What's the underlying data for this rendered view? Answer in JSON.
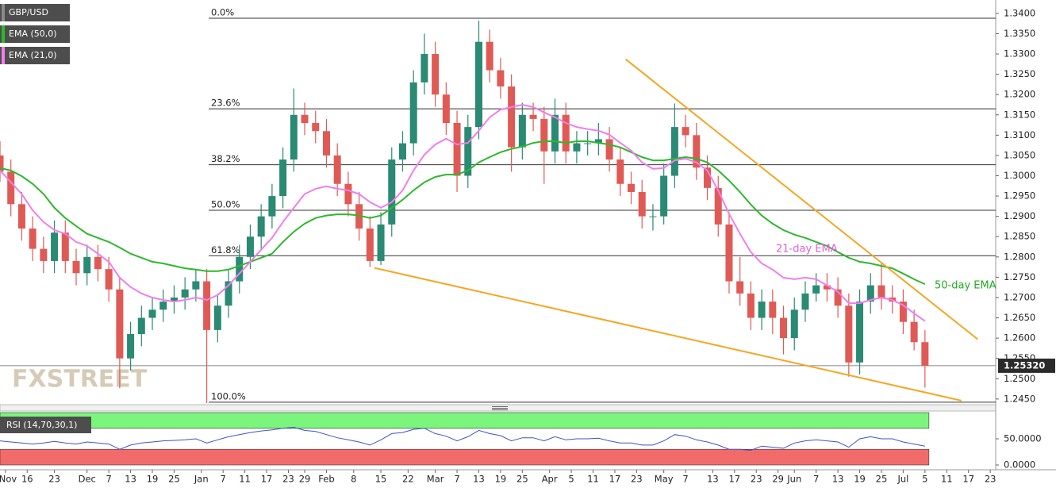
{
  "chart_data": {
    "type": "candlestick",
    "xlim": [
      -5,
      178
    ],
    "ylim": [
      1.2436,
      1.3433
    ],
    "x": [
      -5,
      -3,
      -1,
      1,
      3,
      5,
      7,
      9,
      11,
      13,
      15,
      17,
      19,
      21,
      23,
      25,
      27,
      29,
      31,
      33,
      35,
      37,
      39,
      41,
      43,
      45,
      47,
      49,
      51,
      53,
      55,
      57,
      59,
      61,
      63,
      65,
      67,
      69,
      71,
      73,
      75,
      77,
      79,
      81,
      83,
      85,
      87,
      89,
      91,
      93,
      95,
      97,
      99,
      101,
      103,
      105,
      107,
      109,
      111,
      113,
      115,
      117,
      119,
      121,
      123,
      125,
      127,
      129,
      131,
      133,
      135,
      137,
      139,
      141,
      143,
      145,
      147,
      149,
      151,
      153,
      155,
      157,
      159,
      161,
      163,
      165
    ],
    "series": [
      {
        "name": "GBP/USD",
        "up_color": "#2a8a73",
        "down_color": "#e05a55",
        "stripe_color": "#8a8a8a",
        "open": [
          1.305,
          1.301,
          1.293,
          1.287,
          1.282,
          1.279,
          1.286,
          1.279,
          1.276,
          1.28,
          1.277,
          1.272,
          1.255,
          1.261,
          1.265,
          1.267,
          1.269,
          1.27,
          1.272,
          1.274,
          1.262,
          1.268,
          1.274,
          1.28,
          1.285,
          1.29,
          1.295,
          1.304,
          1.315,
          1.313,
          1.311,
          1.305,
          1.298,
          1.293,
          1.287,
          1.279,
          1.288,
          1.304,
          1.308,
          1.323,
          1.33,
          1.32,
          1.313,
          1.3,
          1.312,
          1.333,
          1.326,
          1.322,
          1.307,
          1.315,
          1.314,
          1.306,
          1.315,
          1.306,
          1.308,
          1.308,
          1.309,
          1.304,
          1.298,
          1.296,
          1.29,
          1.29,
          1.3,
          1.312,
          1.31,
          1.302,
          1.297,
          1.288,
          1.274,
          1.271,
          1.265,
          1.269,
          1.265,
          1.26,
          1.267,
          1.271,
          1.273,
          1.272,
          1.268,
          1.254,
          1.269,
          1.273,
          1.27,
          1.269,
          1.264,
          1.259
        ],
        "high": [
          1.3085,
          1.304,
          1.296,
          1.29,
          1.285,
          1.289,
          1.289,
          1.282,
          1.283,
          1.283,
          1.28,
          1.275,
          1.264,
          1.268,
          1.27,
          1.272,
          1.273,
          1.275,
          1.277,
          1.277,
          1.271,
          1.277,
          1.283,
          1.288,
          1.293,
          1.298,
          1.307,
          1.3215,
          1.318,
          1.316,
          1.314,
          1.308,
          1.301,
          1.296,
          1.29,
          1.291,
          1.307,
          1.311,
          1.326,
          1.335,
          1.333,
          1.323,
          1.316,
          1.315,
          1.3382,
          1.336,
          1.329,
          1.325,
          1.318,
          1.318,
          1.317,
          1.319,
          1.318,
          1.311,
          1.311,
          1.313,
          1.312,
          1.307,
          1.301,
          1.299,
          1.293,
          1.303,
          1.3178,
          1.315,
          1.313,
          1.305,
          1.3,
          1.291,
          1.28,
          1.274,
          1.272,
          1.272,
          1.268,
          1.27,
          1.274,
          1.276,
          1.276,
          1.275,
          1.271,
          1.272,
          1.276,
          1.2785,
          1.273,
          1.272,
          1.267,
          1.262
        ],
        "low": [
          1.2985,
          1.29,
          1.284,
          1.279,
          1.276,
          1.276,
          1.276,
          1.273,
          1.273,
          1.274,
          1.269,
          1.2477,
          1.252,
          1.258,
          1.262,
          1.264,
          1.266,
          1.267,
          1.269,
          1.244,
          1.259,
          1.265,
          1.271,
          1.277,
          1.282,
          1.287,
          1.292,
          1.301,
          1.31,
          1.308,
          1.302,
          1.295,
          1.29,
          1.284,
          1.2775,
          1.278,
          1.285,
          1.301,
          1.305,
          1.32,
          1.317,
          1.31,
          1.296,
          1.297,
          1.309,
          1.323,
          1.319,
          1.301,
          1.304,
          1.311,
          1.298,
          1.303,
          1.303,
          1.303,
          1.305,
          1.305,
          1.301,
          1.295,
          1.293,
          1.287,
          1.2865,
          1.288,
          1.297,
          1.307,
          1.299,
          1.294,
          1.285,
          1.271,
          1.268,
          1.262,
          1.262,
          1.261,
          1.256,
          1.257,
          1.264,
          1.269,
          1.269,
          1.265,
          1.2505,
          1.251,
          1.266,
          1.267,
          1.266,
          1.261,
          1.257,
          1.2478
        ],
        "close": [
          1.301,
          1.293,
          1.287,
          1.282,
          1.279,
          1.286,
          1.279,
          1.276,
          1.28,
          1.277,
          1.272,
          1.255,
          1.261,
          1.265,
          1.267,
          1.269,
          1.27,
          1.272,
          1.274,
          1.262,
          1.268,
          1.274,
          1.28,
          1.285,
          1.29,
          1.295,
          1.304,
          1.315,
          1.313,
          1.311,
          1.305,
          1.298,
          1.293,
          1.287,
          1.279,
          1.288,
          1.304,
          1.308,
          1.323,
          1.33,
          1.32,
          1.313,
          1.3,
          1.312,
          1.333,
          1.326,
          1.322,
          1.307,
          1.315,
          1.314,
          1.306,
          1.315,
          1.306,
          1.308,
          1.308,
          1.309,
          1.304,
          1.298,
          1.296,
          1.29,
          1.29,
          1.3,
          1.312,
          1.31,
          1.302,
          1.297,
          1.288,
          1.274,
          1.271,
          1.265,
          1.269,
          1.265,
          1.26,
          1.267,
          1.271,
          1.273,
          1.272,
          1.268,
          1.254,
          1.269,
          1.273,
          1.27,
          1.269,
          1.264,
          1.259,
          1.2532
        ]
      },
      {
        "name": "EMA (50,0)",
        "color": "#2db82d",
        "values": [
          1.3019,
          1.3013,
          1.2999,
          1.298,
          1.2955,
          1.2921,
          1.2896,
          1.2876,
          1.2857,
          1.2847,
          1.2837,
          1.2823,
          1.2808,
          1.2798,
          1.2788,
          1.2784,
          1.2778,
          1.2772,
          1.2769,
          1.2765,
          1.2765,
          1.2769,
          1.2778,
          1.2788,
          1.2798,
          1.2808,
          1.2837,
          1.2862,
          1.2882,
          1.2896,
          1.2902,
          1.2905,
          1.2905,
          1.2902,
          1.2896,
          1.2902,
          1.2921,
          1.2941,
          1.2964,
          1.2984,
          1.2997,
          1.3003,
          1.3003,
          1.3013,
          1.3033,
          1.3046,
          1.3058,
          1.3066,
          1.3072,
          1.3081,
          1.3085,
          1.3085,
          1.3081,
          1.3085,
          1.3085,
          1.3081,
          1.3077,
          1.307,
          1.3058,
          1.3046,
          1.3038,
          1.3038,
          1.3042,
          1.3046,
          1.3042,
          1.3033,
          1.3013,
          1.2988,
          1.296,
          1.2929,
          1.2902,
          1.2882,
          1.2866,
          1.2855,
          1.2847,
          1.2837,
          1.2827,
          1.2812,
          1.2798,
          1.2788,
          1.2784,
          1.2778,
          1.2772,
          1.2759,
          1.2745,
          1.2733
        ]
      },
      {
        "name": "EMA (21,0)",
        "color": "#f27ded",
        "values": [
          1.3013,
          1.2984,
          1.2955,
          1.2915,
          1.2886,
          1.2866,
          1.2857,
          1.2837,
          1.2827,
          1.2808,
          1.2788,
          1.2749,
          1.2726,
          1.271,
          1.27,
          1.2694,
          1.269,
          1.2694,
          1.27,
          1.2694,
          1.2706,
          1.273,
          1.2759,
          1.2788,
          1.2818,
          1.2847,
          1.2886,
          1.2921,
          1.2955,
          1.2968,
          1.2974,
          1.2968,
          1.2964,
          1.2955,
          1.2935,
          1.2921,
          1.2935,
          1.2964,
          1.3013,
          1.3052,
          1.3077,
          1.3091,
          1.3077,
          1.3081,
          1.3111,
          1.3144,
          1.3163,
          1.3169,
          1.3175,
          1.3169,
          1.3156,
          1.3144,
          1.313,
          1.312,
          1.3115,
          1.3111,
          1.3101,
          1.3081,
          1.3062,
          1.3033,
          1.3017,
          1.3019,
          1.3038,
          1.3042,
          1.3033,
          1.3013,
          1.2964,
          1.2906,
          1.2857,
          1.2812,
          1.2784,
          1.2769,
          1.2749,
          1.2745,
          1.2749,
          1.2745,
          1.273,
          1.2714,
          1.2686,
          1.2686,
          1.2694,
          1.27,
          1.2694,
          1.2681,
          1.2661,
          1.2642
        ]
      }
    ],
    "yticks": [
      {
        "value": 1.34,
        "label": "1.3400"
      },
      {
        "value": 1.335,
        "label": "1.3350"
      },
      {
        "value": 1.33,
        "label": "1.3300"
      },
      {
        "value": 1.325,
        "label": "1.3250"
      },
      {
        "value": 1.32,
        "label": "1.3200"
      },
      {
        "value": 1.315,
        "label": "1.3150"
      },
      {
        "value": 1.31,
        "label": "1.3100"
      },
      {
        "value": 1.305,
        "label": "1.3050"
      },
      {
        "value": 1.3,
        "label": "1.3000"
      },
      {
        "value": 1.295,
        "label": "1.2950"
      },
      {
        "value": 1.29,
        "label": "1.2900"
      },
      {
        "value": 1.285,
        "label": "1.2850"
      },
      {
        "value": 1.28,
        "label": "1.2800"
      },
      {
        "value": 1.275,
        "label": "1.2750"
      },
      {
        "value": 1.27,
        "label": "1.2700"
      },
      {
        "value": 1.265,
        "label": "1.2650"
      },
      {
        "value": 1.26,
        "label": "1.2600"
      },
      {
        "value": 1.255,
        "label": "1.2550"
      },
      {
        "value": 1.25,
        "label": "1.2500"
      },
      {
        "value": 1.245,
        "label": "1.2450"
      }
    ],
    "xticks": [
      {
        "value": -4,
        "label": "Nov"
      },
      {
        "value": 0,
        "label": "16"
      },
      {
        "value": 5,
        "label": "23"
      },
      {
        "value": 11,
        "label": "Dec"
      },
      {
        "value": 15,
        "label": "7"
      },
      {
        "value": 19,
        "label": "13"
      },
      {
        "value": 23,
        "label": "19"
      },
      {
        "value": 27,
        "label": "25"
      },
      {
        "value": 32,
        "label": "Jan"
      },
      {
        "value": 36,
        "label": "7"
      },
      {
        "value": 40,
        "label": "11"
      },
      {
        "value": 44,
        "label": "17"
      },
      {
        "value": 48,
        "label": "23"
      },
      {
        "value": 51,
        "label": "29"
      },
      {
        "value": 55,
        "label": "Feb"
      },
      {
        "value": 60,
        "label": "8"
      },
      {
        "value": 65,
        "label": "15"
      },
      {
        "value": 70,
        "label": "22"
      },
      {
        "value": 75,
        "label": "Mar"
      },
      {
        "value": 79,
        "label": "7"
      },
      {
        "value": 83,
        "label": "13"
      },
      {
        "value": 87,
        "label": "19"
      },
      {
        "value": 91,
        "label": "25"
      },
      {
        "value": 96,
        "label": "Apr"
      },
      {
        "value": 100,
        "label": "5"
      },
      {
        "value": 104,
        "label": "11"
      },
      {
        "value": 108,
        "label": "17"
      },
      {
        "value": 112,
        "label": "23"
      },
      {
        "value": 117,
        "label": "May"
      },
      {
        "value": 121,
        "label": "7"
      },
      {
        "value": 126,
        "label": "13"
      },
      {
        "value": 130,
        "label": "17"
      },
      {
        "value": 134,
        "label": "23"
      },
      {
        "value": 138,
        "label": "29"
      },
      {
        "value": 141,
        "label": "Jun"
      },
      {
        "value": 145,
        "label": "7"
      },
      {
        "value": 149,
        "label": "13"
      },
      {
        "value": 153,
        "label": "19"
      },
      {
        "value": 157,
        "label": "25"
      },
      {
        "value": 161,
        "label": "Jul"
      },
      {
        "value": 165,
        "label": "5"
      },
      {
        "value": 169,
        "label": "11"
      },
      {
        "value": 173,
        "label": "17"
      },
      {
        "value": 177,
        "label": "23"
      }
    ],
    "fib_levels": [
      {
        "value": 1.3388,
        "label": "0.0%"
      },
      {
        "value": 1.3165,
        "label": "23.6%"
      },
      {
        "value": 1.3027,
        "label": "38.2%"
      },
      {
        "value": 1.2915,
        "label": "50.0%"
      },
      {
        "value": 1.2803,
        "label": "61.8%"
      },
      {
        "value": 1.2442,
        "label": "100.0%"
      }
    ],
    "trendlines": [
      {
        "color": "#f5a623",
        "x": [
          110,
          174.7
        ],
        "y": [
          1.3287,
          1.2597
        ]
      },
      {
        "color": "#f5a623",
        "x": [
          63.8,
          171.7
        ],
        "y": [
          1.2773,
          1.2446
        ]
      }
    ],
    "last_price": {
      "value": 1.2532,
      "label": "1.25320"
    },
    "annotations": [
      {
        "text": "21-day EMA",
        "color": "#e060d8"
      },
      {
        "text": "50-day EMA",
        "color": "#22aa22"
      }
    ],
    "watermark": "FXSTREET",
    "rsi": {
      "name": "RSI (14,70,30,1)",
      "color": "#3a55c8",
      "ylim": [
        0,
        100
      ],
      "overbought": 70,
      "oversold": 30,
      "overbought_color": "#7cf57c",
      "oversold_color": "#f26b6b",
      "yticks": [
        {
          "value": 50,
          "label": "50.0000"
        },
        {
          "value": 0,
          "label": "0.0000"
        }
      ],
      "values": [
        46,
        44,
        42,
        40,
        42,
        45,
        42,
        40,
        44,
        42,
        40,
        30,
        38,
        42,
        44,
        46,
        47,
        48,
        50,
        42,
        48,
        54,
        58,
        62,
        65,
        67,
        70,
        72,
        66,
        64,
        58,
        52,
        48,
        44,
        38,
        48,
        60,
        62,
        68,
        70,
        60,
        55,
        46,
        54,
        66,
        60,
        56,
        46,
        52,
        52,
        46,
        54,
        48,
        50,
        50,
        51,
        46,
        42,
        42,
        38,
        38,
        46,
        58,
        55,
        48,
        44,
        38,
        30,
        30,
        28,
        36,
        34,
        32,
        42,
        46,
        48,
        46,
        44,
        34,
        50,
        54,
        50,
        50,
        44,
        40,
        36
      ]
    }
  }
}
